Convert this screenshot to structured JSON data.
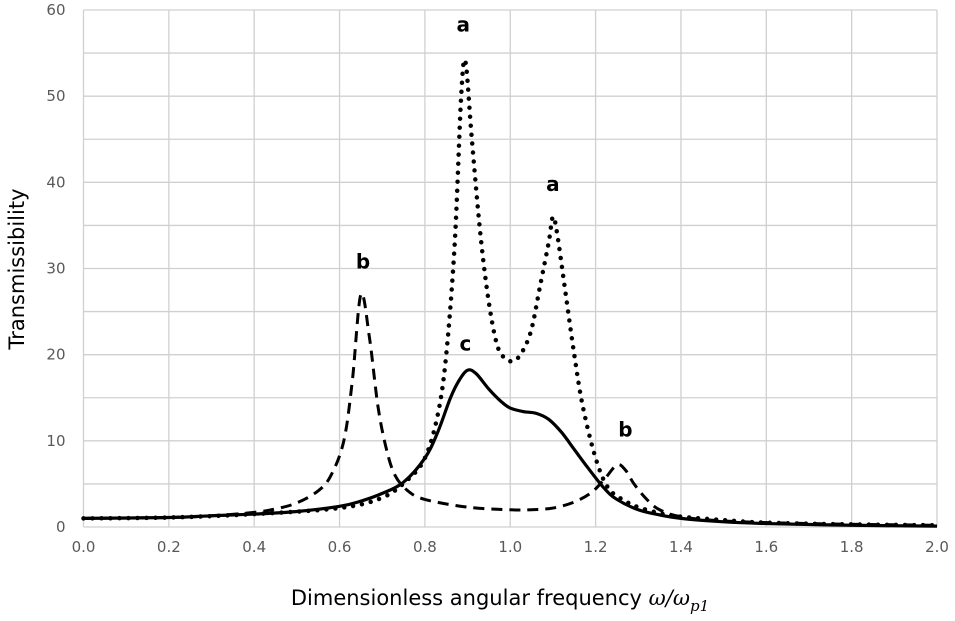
{
  "chart_data": {
    "type": "line",
    "title": "",
    "xlabel": "Dimensionless angular frequency",
    "xlabel_math": {
      "base": "ω/ω",
      "sub": "p1"
    },
    "ylabel": "Transmissibility",
    "xlim": [
      0,
      2.0
    ],
    "ylim": [
      0,
      60
    ],
    "x_ticks": [
      "0.0",
      "0.2",
      "0.4",
      "0.6",
      "0.8",
      "1.0",
      "1.2",
      "1.4",
      "1.6",
      "1.8",
      "2.0"
    ],
    "y_ticks": [
      "0",
      "10",
      "20",
      "30",
      "40",
      "50",
      "60"
    ],
    "grid": true,
    "legend": "none",
    "series": [
      {
        "name": "a",
        "style": "dotted",
        "x": [
          0,
          0.2,
          0.4,
          0.6,
          0.7,
          0.76,
          0.8,
          0.83,
          0.85,
          0.87,
          0.885,
          0.895,
          0.91,
          0.93,
          0.95,
          0.97,
          0.99,
          1.01,
          1.03,
          1.05,
          1.07,
          1.09,
          1.1,
          1.11,
          1.13,
          1.15,
          1.17,
          1.2,
          1.23,
          1.27,
          1.3,
          1.35,
          1.4,
          1.5,
          1.6,
          1.8,
          2.0
        ],
        "y": [
          1,
          1.1,
          1.5,
          2.2,
          3.4,
          5.5,
          8,
          13,
          20,
          33,
          50,
          54,
          45,
          34,
          26,
          21,
          19.5,
          19.3,
          20.5,
          23,
          28,
          33,
          36,
          34,
          27,
          20,
          14,
          8,
          4.5,
          3,
          2.3,
          1.6,
          1.2,
          0.8,
          0.5,
          0.3,
          0.2
        ]
      },
      {
        "name": "b",
        "style": "dashed",
        "x": [
          0,
          0.2,
          0.3,
          0.4,
          0.45,
          0.5,
          0.55,
          0.58,
          0.61,
          0.63,
          0.65,
          0.67,
          0.69,
          0.71,
          0.73,
          0.76,
          0.8,
          0.9,
          1.0,
          1.05,
          1.1,
          1.15,
          1.19,
          1.22,
          1.25,
          1.27,
          1.29,
          1.32,
          1.35,
          1.4,
          1.5,
          1.7,
          2.0
        ],
        "y": [
          1,
          1.1,
          1.3,
          1.7,
          2.1,
          2.8,
          4.2,
          6,
          10,
          17,
          27,
          22,
          14,
          9,
          6,
          4.2,
          3.2,
          2.3,
          2,
          2,
          2.2,
          2.9,
          4,
          5.5,
          7.2,
          6.6,
          5,
          3.2,
          2,
          1.2,
          0.7,
          0.4,
          0.2
        ]
      },
      {
        "name": "c",
        "style": "solid",
        "x": [
          0,
          0.2,
          0.3,
          0.4,
          0.5,
          0.6,
          0.65,
          0.7,
          0.75,
          0.8,
          0.83,
          0.86,
          0.88,
          0.9,
          0.92,
          0.95,
          0.98,
          1.0,
          1.03,
          1.06,
          1.09,
          1.12,
          1.15,
          1.18,
          1.22,
          1.25,
          1.3,
          1.35,
          1.4,
          1.5,
          1.6,
          1.8,
          2.0
        ],
        "y": [
          1,
          1.1,
          1.3,
          1.5,
          1.8,
          2.4,
          3,
          3.9,
          5.2,
          8,
          11,
          15,
          17,
          18.2,
          17.8,
          16,
          14.5,
          13.8,
          13.4,
          13.2,
          12.5,
          11,
          9,
          7,
          4.5,
          3.2,
          2,
          1.4,
          1,
          0.6,
          0.4,
          0.2,
          0.1
        ]
      }
    ],
    "annotations": [
      {
        "text": "a",
        "x": 0.89,
        "y": 57.5
      },
      {
        "text": "a",
        "x": 1.1,
        "y": 39
      },
      {
        "text": "b",
        "x": 0.655,
        "y": 30
      },
      {
        "text": "c",
        "x": 0.895,
        "y": 20.5
      },
      {
        "text": "b",
        "x": 1.27,
        "y": 10.5
      }
    ]
  }
}
